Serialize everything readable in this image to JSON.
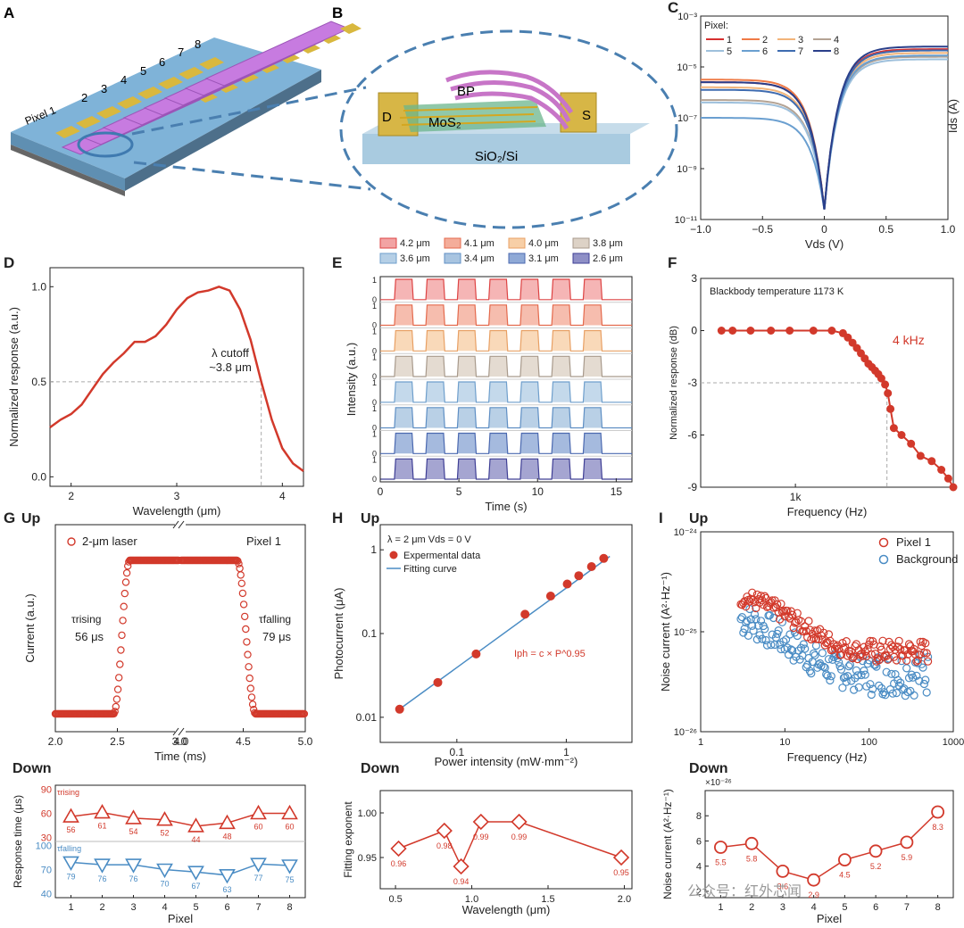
{
  "panels": {
    "A": {
      "letter": "A",
      "pixel_label": "Pixel 1",
      "pixel_numbers": [
        "2",
        "3",
        "4",
        "5",
        "6",
        "7",
        "8"
      ]
    },
    "B": {
      "letter": "B",
      "labels": {
        "bp": "BP",
        "mos2": "MoS₂",
        "substrate": "SiO₂/Si",
        "drain": "D",
        "source": "S"
      }
    }
  },
  "watermark": "公众号：红外芯闻",
  "colors": {
    "red": "#d2392b",
    "blue": "#4a8cc4",
    "grid_dash": "#aaaaaa",
    "pixels": [
      "#d62f2f",
      "#ef7a46",
      "#f2b47a",
      "#b4a394",
      "#9ec0dc",
      "#6a9fd0",
      "#3e6bb0",
      "#2a3f8a"
    ]
  },
  "chart_data": [
    {
      "id": "C",
      "type": "line",
      "letter": "C",
      "xlabel": "Vds (V)",
      "ylabel": "Ids (A)",
      "xlim": [
        -1,
        1
      ],
      "ylim_log10": [
        -11,
        -3
      ],
      "log_y": true,
      "xticks": [
        "−1.0",
        "−0.5",
        "0",
        "0.5",
        "1.0"
      ],
      "yticks": [
        "10⁻³",
        "10⁻⁵",
        "10⁻⁷",
        "10⁻⁹",
        "10⁻¹¹"
      ],
      "legend_title": "Pixel:",
      "legend_placement": "top-left",
      "series": [
        {
          "name": "1",
          "neg_log": -5.6,
          "pos_log": -4.3
        },
        {
          "name": "2",
          "neg_log": -5.5,
          "pos_log": -4.35
        },
        {
          "name": "3",
          "neg_log": -5.8,
          "pos_log": -4.45
        },
        {
          "name": "4",
          "neg_log": -6.3,
          "pos_log": -4.6
        },
        {
          "name": "5",
          "neg_log": -6.4,
          "pos_log": -4.7
        },
        {
          "name": "6",
          "neg_log": -7.0,
          "pos_log": -4.55
        },
        {
          "name": "7",
          "neg_log": -5.9,
          "pos_log": -4.35
        },
        {
          "name": "8",
          "neg_log": -5.6,
          "pos_log": -4.2
        }
      ]
    },
    {
      "id": "D",
      "type": "line",
      "letter": "D",
      "xlabel": "Wavelength (μm)",
      "ylabel": "Normalized response (a.u.)",
      "xlim": [
        1.8,
        4.2
      ],
      "ylim": [
        -0.05,
        1.1
      ],
      "xticks": [
        2,
        3,
        4
      ],
      "yticks": [
        "0.0",
        "0.5",
        "1.0"
      ],
      "annotation": [
        "λ cutoff",
        "~3.8 μm"
      ],
      "cutoff": {
        "x": 3.8,
        "y": 0.5
      },
      "x": [
        1.8,
        1.9,
        2.0,
        2.1,
        2.2,
        2.3,
        2.4,
        2.5,
        2.6,
        2.7,
        2.8,
        2.9,
        3.0,
        3.1,
        3.2,
        3.3,
        3.4,
        3.5,
        3.6,
        3.7,
        3.8,
        3.9,
        4.0,
        4.1,
        4.2
      ],
      "values": [
        0.26,
        0.3,
        0.33,
        0.38,
        0.46,
        0.54,
        0.6,
        0.65,
        0.71,
        0.71,
        0.74,
        0.8,
        0.88,
        0.94,
        0.97,
        0.98,
        1.0,
        0.98,
        0.88,
        0.72,
        0.5,
        0.3,
        0.15,
        0.07,
        0.03
      ]
    },
    {
      "id": "E",
      "type": "line",
      "letter": "E",
      "xlabel": "Time (s)",
      "ylabel": "Intensity (a.u.)",
      "xlim": [
        0,
        16
      ],
      "xticks": [
        0,
        5,
        10,
        15
      ],
      "trace_ticks": [
        "1",
        "0"
      ],
      "period_s": 2,
      "pulses": 7,
      "series": [
        {
          "name": "4.2 μm"
        },
        {
          "name": "4.1 μm"
        },
        {
          "name": "4.0 μm"
        },
        {
          "name": "3.8 μm"
        },
        {
          "name": "3.6 μm"
        },
        {
          "name": "3.4 μm"
        },
        {
          "name": "3.1 μm"
        },
        {
          "name": "2.6 μm"
        }
      ]
    },
    {
      "id": "F",
      "type": "line",
      "letter": "F",
      "xlabel": "Frequency (Hz)",
      "ylabel": "Normalized response (dB)",
      "log_x": true,
      "xlim_log10": [
        2.4,
        4.0
      ],
      "ylim": [
        -9,
        3
      ],
      "xtick_label": "1k",
      "yticks": [
        3,
        0,
        -3,
        -6,
        -9
      ],
      "note": "Blackbody temperature 1173 K",
      "annotation": "4 kHz",
      "cutoff": {
        "x": 3800,
        "y": -3
      },
      "x": [
        340,
        400,
        520,
        700,
        920,
        1300,
        1700,
        2000,
        2150,
        2300,
        2450,
        2600,
        2750,
        2900,
        3050,
        3200,
        3350,
        3500,
        3700,
        3850,
        4000,
        4200,
        4700,
        5400,
        6200,
        7300,
        8400,
        9300,
        10000
      ],
      "values": [
        0,
        0,
        0,
        0,
        0,
        0,
        0,
        -0.15,
        -0.4,
        -0.7,
        -1.0,
        -1.3,
        -1.6,
        -1.9,
        -2.1,
        -2.3,
        -2.5,
        -2.75,
        -3.1,
        -3.6,
        -4.5,
        -5.6,
        -6.0,
        -6.5,
        -7.2,
        -7.5,
        -8.0,
        -8.5,
        -9.0
      ]
    },
    {
      "id": "G_up",
      "type": "scatter",
      "letter": "G",
      "sublabel": "Up",
      "xlabel": "Time (ms)",
      "ylabel": "Current (a.u.)",
      "xticks": [
        "2.0",
        "2.5",
        "3.0",
        "4.0",
        "4.5",
        "5.0"
      ],
      "axis_break": "3.0–4.0 ms",
      "legend": "2-μm laser",
      "pixel_label": "Pixel 1",
      "rise": {
        "label": "τrising",
        "value": "56 μs",
        "t0": 2.47,
        "t1": 2.6
      },
      "fall": {
        "label": "τfalling",
        "value": "79 μs",
        "t0": 4.45,
        "t1": 4.6
      }
    },
    {
      "id": "G_down",
      "type": "line",
      "sublabel": "Down",
      "xlabel": "Pixel",
      "ylabel": "Response time (μs)",
      "categories": [
        1,
        2,
        3,
        4,
        5,
        6,
        7,
        8
      ],
      "rising": {
        "label": "τrising",
        "values": [
          56,
          61,
          54,
          52,
          44,
          48,
          60,
          60
        ],
        "ylim": [
          25,
          95
        ],
        "yticks": [
          30,
          60,
          90
        ]
      },
      "falling": {
        "label": "τfalling",
        "values": [
          79,
          76,
          76,
          70,
          67,
          63,
          77,
          75
        ],
        "ylim": [
          35,
          105
        ],
        "yticks": [
          40,
          70,
          100
        ]
      }
    },
    {
      "id": "H_up",
      "type": "scatter",
      "letter": "H",
      "sublabel": "Up",
      "xlabel": "Power intensity (mW·mm⁻²)",
      "ylabel": "Photocurrent (μA)",
      "log_x": true,
      "log_y": true,
      "xlim_log10": [
        -1.7,
        0.6
      ],
      "ylim_log10": [
        -2.3,
        0.3
      ],
      "xticks": [
        "0.1",
        "1"
      ],
      "yticks": [
        "1",
        "0.1",
        "0.01"
      ],
      "condition": "λ = 2 μm   Vds = 0 V",
      "legend": [
        "Expermental data",
        "Fitting curve"
      ],
      "formula": "Iph = c × P^0.95",
      "x": [
        0.03,
        0.067,
        0.15,
        0.42,
        0.72,
        1.02,
        1.3,
        1.7,
        2.2
      ],
      "values": [
        0.0125,
        0.026,
        0.057,
        0.17,
        0.28,
        0.39,
        0.49,
        0.63,
        0.79
      ]
    },
    {
      "id": "H_down",
      "type": "line",
      "sublabel": "Down",
      "xlabel": "Wavelength (μm)",
      "ylabel": "Fitting  exponent",
      "xlim": [
        0.4,
        2.05
      ],
      "ylim": [
        0.915,
        1.025
      ],
      "xticks": [
        "0.5",
        "1.0",
        "1.5",
        "2.0"
      ],
      "yticks": [
        "0.95",
        "1.00"
      ],
      "x": [
        0.52,
        0.82,
        0.93,
        1.06,
        1.31,
        1.98
      ],
      "values": [
        0.96,
        0.98,
        0.94,
        0.99,
        0.99,
        0.95
      ],
      "labels": [
        "0.96",
        "0.98",
        "0.94",
        "0.99",
        "0.99",
        "0.95"
      ]
    },
    {
      "id": "I_up",
      "type": "scatter",
      "letter": "I",
      "sublabel": "Up",
      "xlabel": "Frequency (Hz)",
      "ylabel": "Noise current (A²·Hz⁻¹)",
      "log_x": true,
      "log_y": true,
      "xlim_log10": [
        0,
        3
      ],
      "ylim_log10": [
        -26,
        -24
      ],
      "xticks": [
        "1",
        "10",
        "100",
        "1000"
      ],
      "yticks": [
        "10⁻²⁴",
        "10⁻²⁵",
        "10⁻²⁶"
      ],
      "legend_placement": "top-right",
      "series": [
        {
          "name": "Pixel 1",
          "floor_log": -25.2
        },
        {
          "name": "Background",
          "floor_log": -25.42
        }
      ]
    },
    {
      "id": "I_down",
      "type": "line",
      "sublabel": "Down",
      "xlabel": "Pixel",
      "ylabel": "Noise current (A²·Hz⁻¹)",
      "y_multiplier": "×10⁻²⁶",
      "categories": [
        1,
        2,
        3,
        4,
        5,
        6,
        7,
        8
      ],
      "ylim": [
        1.5,
        10
      ],
      "yticks": [
        "2",
        "4",
        "6",
        "8"
      ],
      "values": [
        5.5,
        5.8,
        3.6,
        2.9,
        4.5,
        5.2,
        5.9,
        8.3
      ],
      "labels": [
        "5.5",
        "5.8",
        "3.6",
        "2.9",
        "4.5",
        "5.2",
        "5.9",
        "8.3"
      ]
    }
  ]
}
